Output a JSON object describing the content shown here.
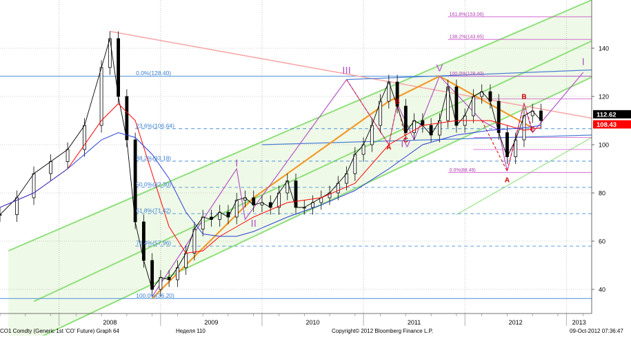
{
  "chart_data": {
    "type": "line",
    "title": "",
    "xlabel": "",
    "ylabel": "",
    "x_ticks": [
      "2008",
      "2009",
      "2010",
      "2011",
      "2012",
      "2013"
    ],
    "y_ticks": [
      40,
      60,
      80,
      100,
      120,
      140
    ],
    "xlim": [
      "2007-06",
      "2013-04"
    ],
    "ylim": [
      30,
      160
    ],
    "grid": true,
    "price_badges": [
      {
        "label": "112.62",
        "bg": "#000000",
        "fg": "#ffffff"
      },
      {
        "label": "108.43",
        "bg": "#ff0000",
        "fg": "#ffffff"
      }
    ],
    "fib_retracement_levels": [
      {
        "label": "0.0%(128.40)",
        "value": 128.4
      },
      {
        "label": "23.6%(106.64)",
        "value": 106.64
      },
      {
        "label": "38.2%(93.18)",
        "value": 93.18
      },
      {
        "label": "50.0%(82.30)",
        "value": 82.3
      },
      {
        "label": "61.8%(71.42)",
        "value": 71.42
      },
      {
        "label": "76.4%(57.96)",
        "value": 57.96
      },
      {
        "label": "100.0%(36.20)",
        "value": 36.2
      }
    ],
    "fib_extension_levels": [
      {
        "label": "161.8%(153.06)",
        "value": 153.06
      },
      {
        "label": "138.2%(143.65)",
        "value": 143.65
      },
      {
        "label": "100.0%(128.40)",
        "value": 128.4
      },
      {
        "label": "0.0%(88.49)",
        "value": 88.49
      }
    ],
    "wave_labels": [
      {
        "text": "I",
        "x": "2009-10",
        "y": 91,
        "color": "#b455c8"
      },
      {
        "text": "II",
        "x": "2009-12",
        "y": 66,
        "color": "#b455c8"
      },
      {
        "text": "III",
        "x": "2010-11",
        "y": 129.5,
        "color": "#b455c8"
      },
      {
        "text": "IV",
        "x": "2011-06",
        "y": 99,
        "color": "#b455c8"
      },
      {
        "text": "V",
        "x": "2011-10",
        "y": 130.5,
        "color": "#b455c8"
      },
      {
        "text": "I",
        "x": "2013-03",
        "y": 133,
        "color": "#b455c8"
      },
      {
        "text": "A",
        "x": "2011-04",
        "y": 98,
        "color": "#cc0000"
      },
      {
        "text": "B",
        "x": "2011-05",
        "y": 117,
        "color": "#cc0000"
      },
      {
        "text": "C",
        "x": "2011-06",
        "y": 101,
        "color": "#cc0000"
      },
      {
        "text": "A",
        "x": "2012-06",
        "y": 84.5,
        "color": "#cc0000"
      },
      {
        "text": "B",
        "x": "2012-08",
        "y": 119,
        "color": "#cc0000"
      },
      {
        "text": "C",
        "x": "2012-09",
        "y": 105.5,
        "color": "#cc0000"
      }
    ],
    "series": [
      {
        "name": "",
        "style": "candles",
        "color": "#000000",
        "x": [
          "2007-06",
          "2007-08",
          "2007-10",
          "2007-12",
          "2008-02",
          "2008-04",
          "2008-06",
          "2008-07",
          "2008-08",
          "2008-09",
          "2008-10",
          "2008-11",
          "2008-12",
          "2009-01",
          "2009-02",
          "2009-03",
          "2009-04",
          "2009-05",
          "2009-06",
          "2009-07",
          "2009-08",
          "2009-09",
          "2009-10",
          "2009-11",
          "2009-12",
          "2010-01",
          "2010-02",
          "2010-03",
          "2010-04",
          "2010-05",
          "2010-06",
          "2010-07",
          "2010-08",
          "2010-09",
          "2010-10",
          "2010-11",
          "2010-12",
          "2011-01",
          "2011-02",
          "2011-03",
          "2011-04",
          "2011-05",
          "2011-06",
          "2011-07",
          "2011-08",
          "2011-09",
          "2011-10",
          "2011-11",
          "2011-12",
          "2012-01",
          "2012-02",
          "2012-03",
          "2012-04",
          "2012-05",
          "2012-06",
          "2012-07",
          "2012-08",
          "2012-09",
          "2012-10"
        ],
        "y": [
          71,
          78,
          88,
          93,
          98,
          108,
          132,
          144,
          120,
          102,
          68,
          52,
          40,
          45,
          44,
          49,
          55,
          65,
          70,
          69,
          72,
          70,
          77,
          78,
          75,
          76,
          74,
          80,
          85,
          74,
          74,
          76,
          78,
          80,
          84,
          88,
          96,
          100,
          108,
          118,
          126,
          116,
          105,
          110,
          108,
          104,
          110,
          124,
          108,
          112,
          120,
          122,
          118,
          105,
          95,
          102,
          112,
          114,
          110
        ]
      },
      {
        "name": "",
        "style": "line",
        "color": "#ff0000",
        "x": [
          "2007-06",
          "2007-10",
          "2008-02",
          "2008-06",
          "2008-08",
          "2008-10",
          "2008-12",
          "2009-02",
          "2009-04",
          "2009-06",
          "2009-08",
          "2009-10",
          "2009-12",
          "2010-04",
          "2010-08",
          "2010-12",
          "2011-04",
          "2011-08",
          "2011-12",
          "2012-04",
          "2012-08",
          "2012-10"
        ],
        "y": [
          74,
          80,
          90,
          110,
          117,
          110,
          88,
          66,
          55,
          56,
          62,
          66,
          70,
          76,
          78,
          84,
          100,
          108,
          110,
          110,
          106,
          107
        ]
      },
      {
        "name": "",
        "style": "line",
        "color": "#2d3fd8",
        "x": [
          "2007-06",
          "2007-10",
          "2008-02",
          "2008-06",
          "2008-08",
          "2008-10",
          "2008-12",
          "2009-02",
          "2009-04",
          "2009-06",
          "2009-08",
          "2009-10",
          "2009-12",
          "2010-04",
          "2010-08",
          "2010-12",
          "2011-04",
          "2011-08",
          "2011-12",
          "2012-04",
          "2012-08",
          "2012-10"
        ],
        "y": [
          74,
          80,
          90,
          102,
          105,
          103,
          96,
          86,
          72,
          63,
          62,
          62,
          64,
          70,
          75,
          81,
          90,
          100,
          104,
          106,
          107,
          108
        ]
      }
    ]
  }
}
